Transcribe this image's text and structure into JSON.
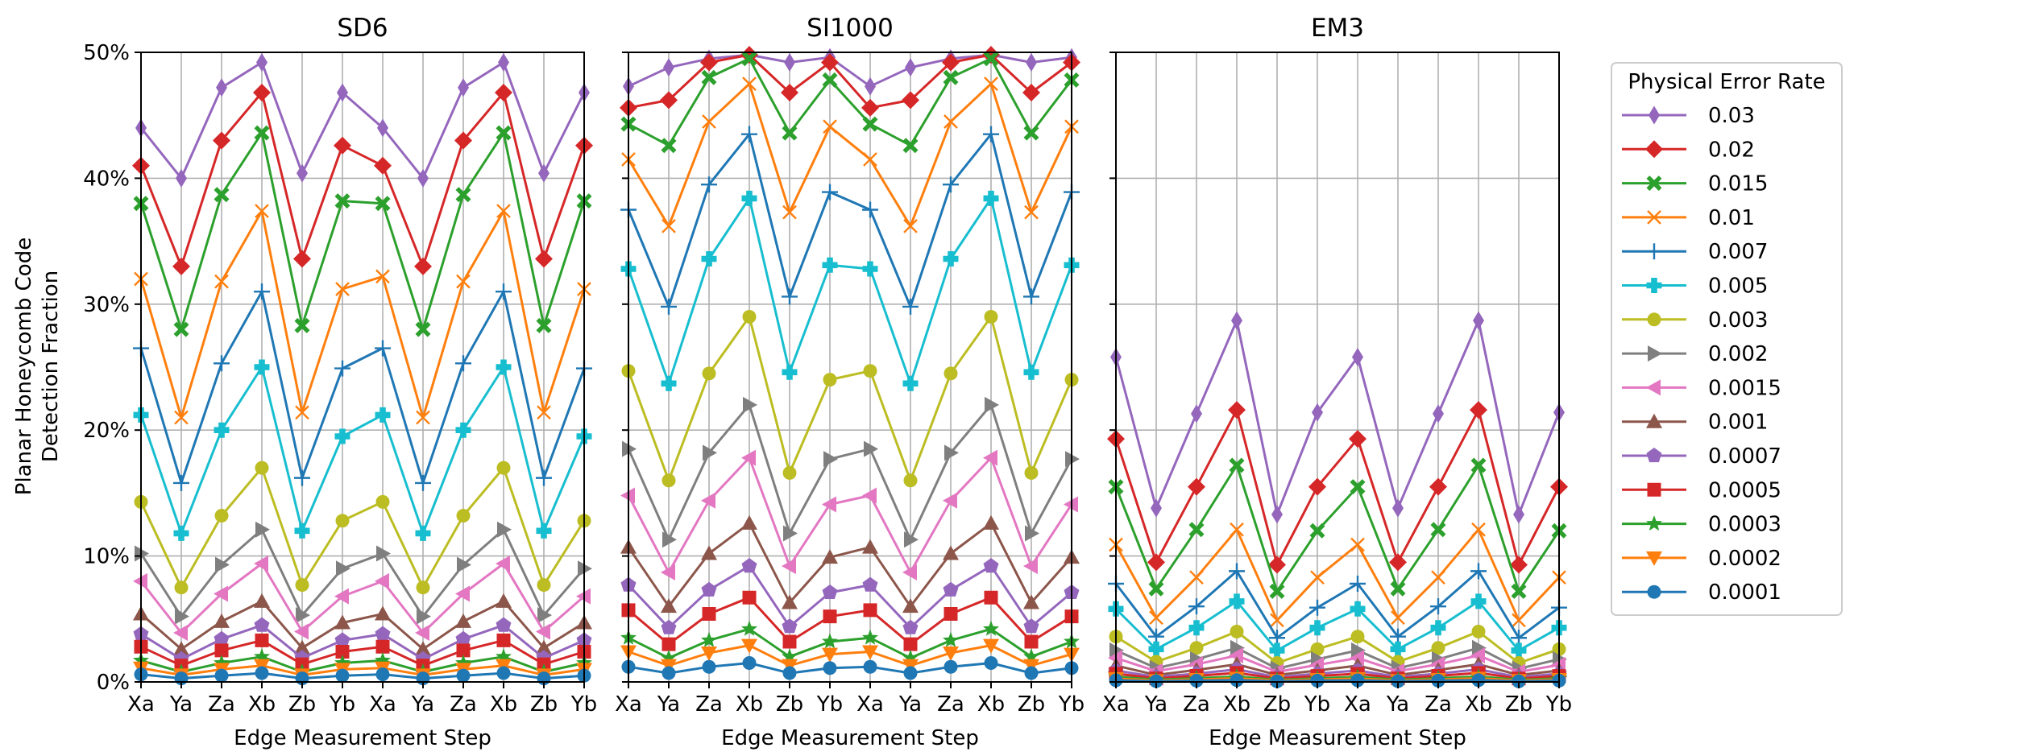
{
  "figure": {
    "shared_ylabel_lines": [
      "Planar Honeycomb Code",
      "Detection Fraction"
    ],
    "shared_xlabel": "Edge Measurement Step",
    "legend_title": "Physical Error Rate"
  },
  "chart_data": [
    {
      "type": "line",
      "title": "SD6",
      "xlabel": "Edge Measurement Step",
      "ylabel": "Planar Honeycomb Code Detection Fraction",
      "categories": [
        "Xa",
        "Ya",
        "Za",
        "Xb",
        "Zb",
        "Yb",
        "Xa",
        "Ya",
        "Za",
        "Xb",
        "Zb",
        "Yb"
      ],
      "ylim": [
        0,
        50
      ],
      "yticks": [
        "0%",
        "10%",
        "20%",
        "30%",
        "40%",
        "50%"
      ],
      "grid": true,
      "series": [
        {
          "name": "0.03",
          "values": [
            44,
            40,
            47.2,
            49.2,
            40.4,
            46.8,
            44,
            40,
            47.2,
            49.2,
            40.4,
            46.8
          ]
        },
        {
          "name": "0.02",
          "values": [
            41,
            33,
            43,
            46.8,
            33.6,
            42.6,
            41,
            33,
            43,
            46.8,
            33.6,
            42.6
          ]
        },
        {
          "name": "0.015",
          "values": [
            38,
            28,
            38.7,
            43.6,
            28.3,
            38.2,
            38,
            28,
            38.7,
            43.6,
            28.3,
            38.2
          ]
        },
        {
          "name": "0.01",
          "values": [
            32,
            21,
            31.8,
            37.4,
            21.4,
            31.2,
            32.2,
            21,
            31.8,
            37.4,
            21.4,
            31.2
          ]
        },
        {
          "name": "0.007",
          "values": [
            26.5,
            15.8,
            25.3,
            31,
            16.2,
            24.9,
            26.5,
            15.8,
            25.3,
            31,
            16.2,
            24.9
          ]
        },
        {
          "name": "0.005",
          "values": [
            21.2,
            11.8,
            20,
            25,
            12,
            19.5,
            21.2,
            11.8,
            20,
            25,
            12,
            19.5
          ]
        },
        {
          "name": "0.003",
          "values": [
            14.3,
            7.5,
            13.2,
            17,
            7.7,
            12.8,
            14.3,
            7.5,
            13.2,
            17,
            7.7,
            12.8
          ]
        },
        {
          "name": "0.002",
          "values": [
            10.2,
            5.2,
            9.3,
            12.1,
            5.3,
            9,
            10.2,
            5.2,
            9.3,
            12.1,
            5.3,
            9
          ]
        },
        {
          "name": "0.0015",
          "values": [
            8,
            3.9,
            7,
            9.4,
            4,
            6.8,
            8,
            3.9,
            7,
            9.4,
            4,
            6.8
          ]
        },
        {
          "name": "0.001",
          "values": [
            5.4,
            2.6,
            4.8,
            6.4,
            2.7,
            4.7,
            5.4,
            2.6,
            4.8,
            6.4,
            2.7,
            4.7
          ]
        },
        {
          "name": "0.0007",
          "values": [
            3.8,
            1.8,
            3.4,
            4.5,
            1.9,
            3.3,
            3.8,
            1.8,
            3.4,
            4.5,
            1.9,
            3.3
          ]
        },
        {
          "name": "0.0005",
          "values": [
            2.8,
            1.3,
            2.5,
            3.3,
            1.4,
            2.4,
            2.8,
            1.3,
            2.5,
            3.3,
            1.4,
            2.4
          ]
        },
        {
          "name": "0.0003",
          "values": [
            1.7,
            0.8,
            1.5,
            2,
            0.8,
            1.5,
            1.7,
            0.8,
            1.5,
            2,
            0.8,
            1.5
          ]
        },
        {
          "name": "0.0002",
          "values": [
            1.1,
            0.55,
            1,
            1.3,
            0.55,
            1,
            1.1,
            0.55,
            1,
            1.3,
            0.55,
            1
          ]
        },
        {
          "name": "0.0001",
          "values": [
            0.6,
            0.28,
            0.5,
            0.7,
            0.28,
            0.5,
            0.6,
            0.28,
            0.5,
            0.7,
            0.28,
            0.5
          ]
        }
      ]
    },
    {
      "type": "line",
      "title": "SI1000",
      "xlabel": "Edge Measurement Step",
      "ylabel": "",
      "categories": [
        "Xa",
        "Ya",
        "Za",
        "Xb",
        "Zb",
        "Yb",
        "Xa",
        "Ya",
        "Za",
        "Xb",
        "Zb",
        "Yb"
      ],
      "ylim": [
        0,
        50
      ],
      "yticks": [
        "0%",
        "10%",
        "20%",
        "30%",
        "40%",
        "50%"
      ],
      "grid": true,
      "series": [
        {
          "name": "0.03",
          "values": [
            47.3,
            48.8,
            49.5,
            49.8,
            49.2,
            49.6,
            47.3,
            48.8,
            49.5,
            49.8,
            49.2,
            49.6
          ]
        },
        {
          "name": "0.02",
          "values": [
            45.6,
            46.2,
            49.2,
            49.8,
            46.8,
            49.2,
            45.6,
            46.2,
            49.2,
            49.8,
            46.8,
            49.2
          ]
        },
        {
          "name": "0.015",
          "values": [
            44.3,
            42.6,
            48,
            49.5,
            43.6,
            47.8,
            44.3,
            42.6,
            48,
            49.5,
            43.6,
            47.8
          ]
        },
        {
          "name": "0.01",
          "values": [
            41.5,
            36.2,
            44.5,
            47.5,
            37.3,
            44.1,
            41.5,
            36.2,
            44.5,
            47.5,
            37.3,
            44.1
          ]
        },
        {
          "name": "0.007",
          "values": [
            37.5,
            29.8,
            39.5,
            43.5,
            30.6,
            38.9,
            37.5,
            29.8,
            39.5,
            43.5,
            30.6,
            38.9
          ]
        },
        {
          "name": "0.005",
          "values": [
            32.8,
            23.7,
            33.6,
            38.4,
            24.6,
            33.1,
            32.8,
            23.7,
            33.6,
            38.4,
            24.6,
            33.1
          ]
        },
        {
          "name": "0.003",
          "values": [
            24.7,
            16,
            24.5,
            29,
            16.6,
            24,
            24.7,
            16,
            24.5,
            29,
            16.6,
            24
          ]
        },
        {
          "name": "0.002",
          "values": [
            18.5,
            11.3,
            18.2,
            22,
            11.8,
            17.7,
            18.5,
            11.3,
            18.2,
            22,
            11.8,
            17.7
          ]
        },
        {
          "name": "0.0015",
          "values": [
            14.8,
            8.7,
            14.4,
            17.8,
            9.2,
            14.1,
            14.8,
            8.7,
            14.4,
            17.8,
            9.2,
            14.1
          ]
        },
        {
          "name": "0.001",
          "values": [
            10.7,
            6,
            10.2,
            12.6,
            6.3,
            9.9,
            10.7,
            6,
            10.2,
            12.6,
            6.3,
            9.9
          ]
        },
        {
          "name": "0.0007",
          "values": [
            7.7,
            4.3,
            7.3,
            9.2,
            4.4,
            7.1,
            7.7,
            4.3,
            7.3,
            9.2,
            4.4,
            7.1
          ]
        },
        {
          "name": "0.0005",
          "values": [
            5.7,
            3,
            5.4,
            6.7,
            3.2,
            5.2,
            5.7,
            3,
            5.4,
            6.7,
            3.2,
            5.2
          ]
        },
        {
          "name": "0.0003",
          "values": [
            3.5,
            1.9,
            3.3,
            4.2,
            2,
            3.2,
            3.5,
            1.9,
            3.3,
            4.2,
            2,
            3.2
          ]
        },
        {
          "name": "0.0002",
          "values": [
            2.4,
            1.3,
            2.3,
            2.9,
            1.3,
            2.2,
            2.4,
            1.3,
            2.3,
            2.9,
            1.3,
            2.2
          ]
        },
        {
          "name": "0.0001",
          "values": [
            1.2,
            0.7,
            1.2,
            1.5,
            0.7,
            1.1,
            1.2,
            0.7,
            1.2,
            1.5,
            0.7,
            1.1
          ]
        }
      ]
    },
    {
      "type": "line",
      "title": "EM3",
      "xlabel": "Edge Measurement Step",
      "ylabel": "",
      "categories": [
        "Xa",
        "Ya",
        "Za",
        "Xb",
        "Zb",
        "Yb",
        "Xa",
        "Ya",
        "Za",
        "Xb",
        "Zb",
        "Yb"
      ],
      "ylim": [
        0,
        50
      ],
      "yticks": [
        "0%",
        "10%",
        "20%",
        "30%",
        "40%",
        "50%"
      ],
      "grid": true,
      "series": [
        {
          "name": "0.03",
          "values": [
            25.8,
            13.8,
            21.3,
            28.7,
            13.3,
            21.4,
            25.8,
            13.8,
            21.3,
            28.7,
            13.3,
            21.4
          ]
        },
        {
          "name": "0.02",
          "values": [
            19.3,
            9.5,
            15.5,
            21.6,
            9.3,
            15.5,
            19.3,
            9.5,
            15.5,
            21.6,
            9.3,
            15.5
          ]
        },
        {
          "name": "0.015",
          "values": [
            15.5,
            7.4,
            12.1,
            17.2,
            7.2,
            12,
            15.5,
            7.4,
            12.1,
            17.2,
            7.2,
            12
          ]
        },
        {
          "name": "0.01",
          "values": [
            10.9,
            5.1,
            8.3,
            12.1,
            4.9,
            8.3,
            10.9,
            5.1,
            8.3,
            12.1,
            4.9,
            8.3
          ]
        },
        {
          "name": "0.007",
          "values": [
            7.8,
            3.6,
            6,
            8.8,
            3.5,
            5.9,
            7.8,
            3.6,
            6,
            8.8,
            3.5,
            5.9
          ]
        },
        {
          "name": "0.005",
          "values": [
            5.8,
            2.6,
            4.3,
            6.4,
            2.5,
            4.3,
            5.8,
            2.6,
            4.3,
            6.4,
            2.5,
            4.3
          ]
        },
        {
          "name": "0.003",
          "values": [
            3.6,
            1.6,
            2.7,
            4,
            1.5,
            2.6,
            3.6,
            1.6,
            2.7,
            4,
            1.5,
            2.6
          ]
        },
        {
          "name": "0.002",
          "values": [
            2.5,
            1.1,
            1.8,
            2.7,
            1.05,
            1.8,
            2.5,
            1.1,
            1.8,
            2.7,
            1.05,
            1.8
          ]
        },
        {
          "name": "0.0015",
          "values": [
            1.9,
            0.85,
            1.4,
            2.1,
            0.8,
            1.35,
            1.9,
            0.85,
            1.4,
            2.1,
            0.8,
            1.35
          ]
        },
        {
          "name": "0.001",
          "values": [
            1.3,
            0.55,
            0.95,
            1.4,
            0.55,
            0.9,
            1.3,
            0.55,
            0.95,
            1.4,
            0.55,
            0.9
          ]
        },
        {
          "name": "0.0007",
          "values": [
            0.9,
            0.4,
            0.65,
            1,
            0.38,
            0.65,
            0.9,
            0.4,
            0.65,
            1,
            0.38,
            0.65
          ]
        },
        {
          "name": "0.0005",
          "values": [
            0.65,
            0.28,
            0.48,
            0.72,
            0.27,
            0.47,
            0.65,
            0.28,
            0.48,
            0.72,
            0.27,
            0.47
          ]
        },
        {
          "name": "0.0003",
          "values": [
            0.4,
            0.17,
            0.29,
            0.43,
            0.16,
            0.28,
            0.4,
            0.17,
            0.29,
            0.43,
            0.16,
            0.28
          ]
        },
        {
          "name": "0.0002",
          "values": [
            0.26,
            0.11,
            0.19,
            0.29,
            0.11,
            0.19,
            0.26,
            0.11,
            0.19,
            0.29,
            0.11,
            0.19
          ]
        },
        {
          "name": "0.0001",
          "values": [
            0.13,
            0.06,
            0.1,
            0.14,
            0.05,
            0.1,
            0.13,
            0.06,
            0.1,
            0.14,
            0.05,
            0.1
          ]
        }
      ]
    }
  ],
  "legend": [
    {
      "label": "0.03",
      "color": "#9467bd",
      "marker": "thin-diamond"
    },
    {
      "label": "0.02",
      "color": "#d62728",
      "marker": "diamond"
    },
    {
      "label": "0.015",
      "color": "#2ca02c",
      "marker": "x-filled"
    },
    {
      "label": "0.01",
      "color": "#ff7f0e",
      "marker": "x"
    },
    {
      "label": "0.007",
      "color": "#1f77b4",
      "marker": "plus"
    },
    {
      "label": "0.005",
      "color": "#17becf",
      "marker": "plus-filled"
    },
    {
      "label": "0.003",
      "color": "#bcbd22",
      "marker": "circle"
    },
    {
      "label": "0.002",
      "color": "#7f7f7f",
      "marker": "triangle-right"
    },
    {
      "label": "0.0015",
      "color": "#e377c2",
      "marker": "triangle-left"
    },
    {
      "label": "0.001",
      "color": "#8c564b",
      "marker": "triangle-up"
    },
    {
      "label": "0.0007",
      "color": "#9467bd",
      "marker": "pentagon"
    },
    {
      "label": "0.0005",
      "color": "#d62728",
      "marker": "square"
    },
    {
      "label": "0.0003",
      "color": "#2ca02c",
      "marker": "star"
    },
    {
      "label": "0.0002",
      "color": "#ff7f0e",
      "marker": "triangle-down"
    },
    {
      "label": "0.0001",
      "color": "#1f77b4",
      "marker": "circle"
    }
  ]
}
